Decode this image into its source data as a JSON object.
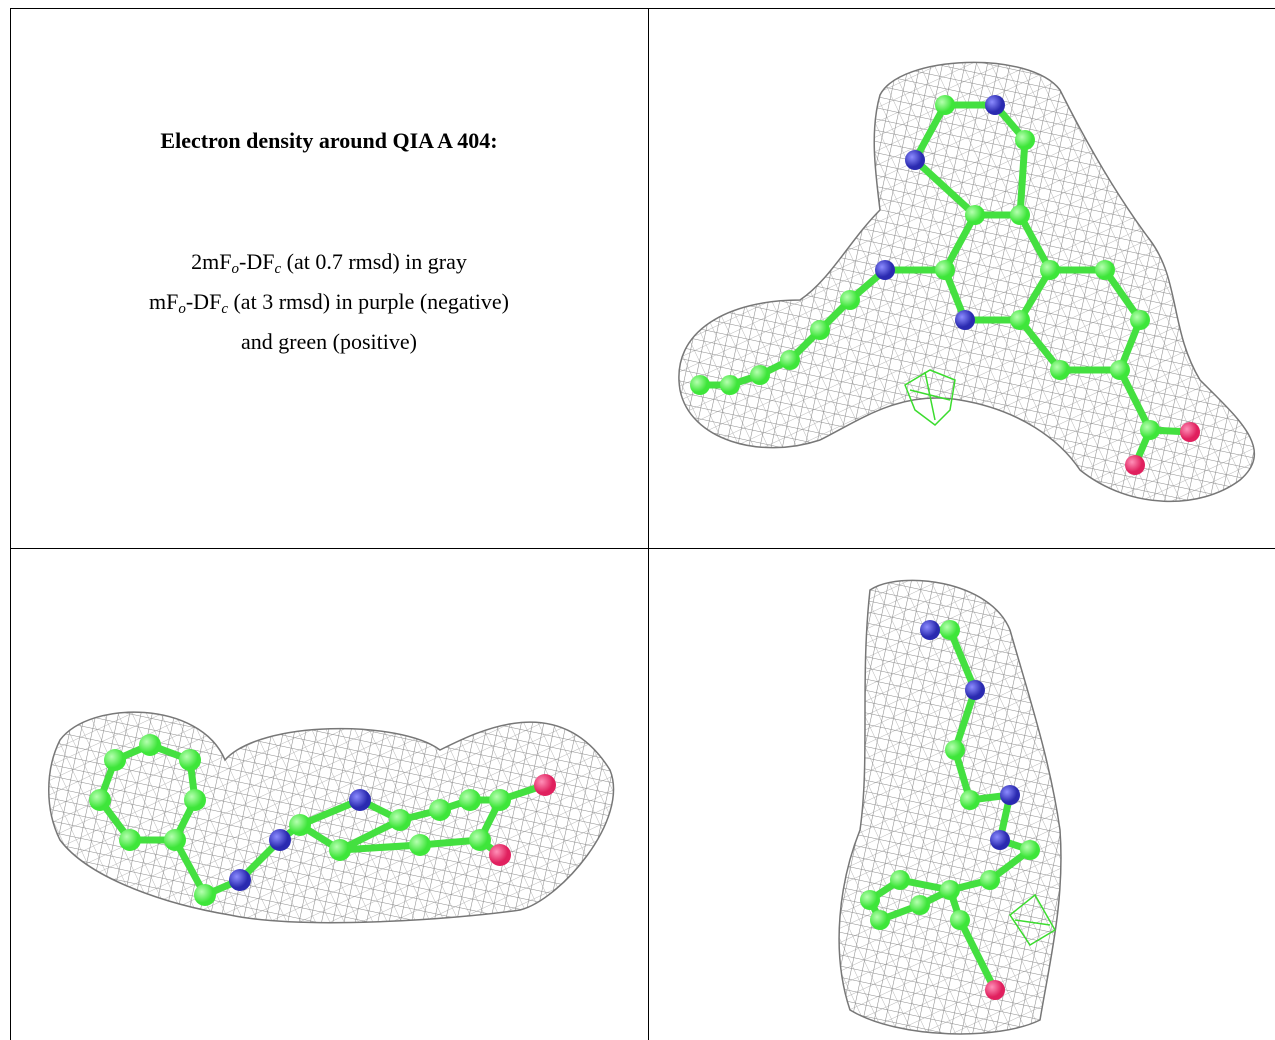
{
  "table": {
    "title": "Electron density around QIA A 404:",
    "lines": [
      [
        "2mF",
        "o",
        "-DF",
        "c",
        " (at 0.7 rmsd) in gray"
      ],
      [
        "mF",
        "o",
        "-DF",
        "c",
        " (at 3 rmsd) in purple (negative)"
      ],
      [
        "and green (positive)"
      ]
    ]
  }
}
